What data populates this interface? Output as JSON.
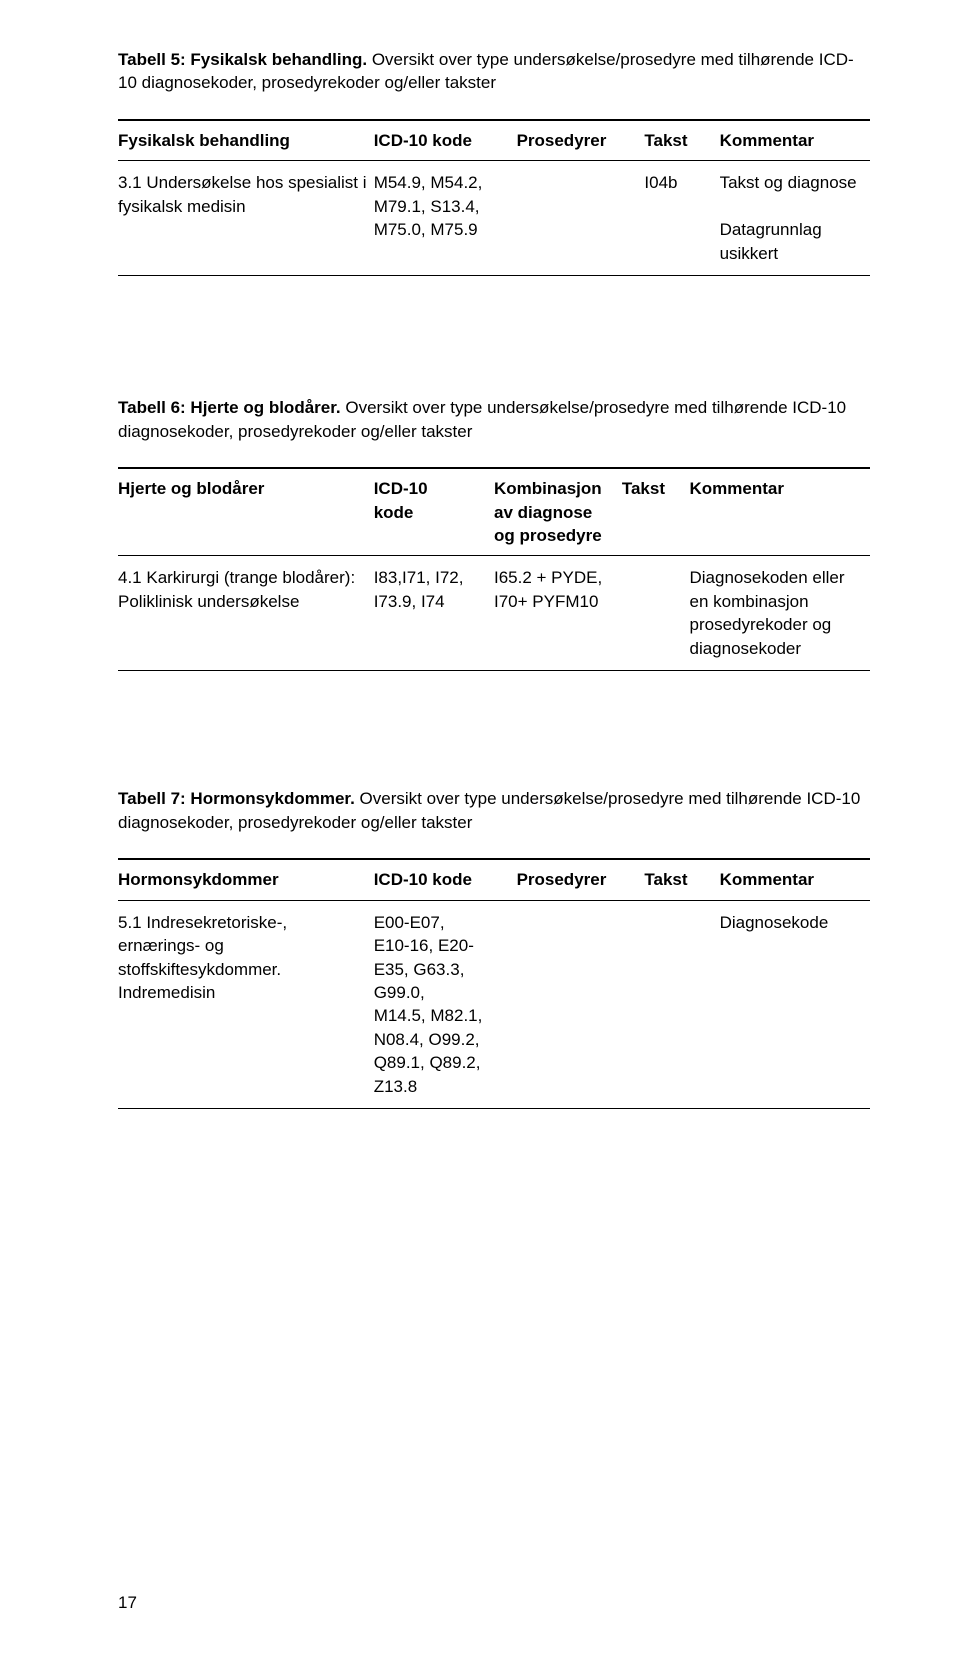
{
  "page_number": "17",
  "tables": [
    {
      "caption_bold": "Tabell 5: Fysikalsk behandling.",
      "caption_rest": " Oversikt over type undersøkelse/prosedyre med tilhørende ICD-10 diagnosekoder, prosedyrekoder og/eller takster",
      "headers": [
        "Fysikalsk behandling",
        "ICD-10 kode",
        "Prosedyrer",
        "Takst",
        "Kommentar"
      ],
      "rows": [
        {
          "c1": "3.1 Undersøkelse hos spesialist i fysikalsk medisin",
          "c2": "M54.9, M54.2,\nM79.1, S13.4,\nM75.0, M75.9",
          "c3": "",
          "c4": "I04b",
          "c5": "Takst og diagnose\n\nDatagrunnlag usikkert"
        }
      ]
    },
    {
      "caption_bold": "Tabell 6: Hjerte og blodårer.",
      "caption_rest": " Oversikt over type undersøkelse/prosedyre med tilhørende ICD-10 diagnosekoder, prosedyrekoder og/eller takster",
      "headers": [
        "Hjerte og blodårer",
        "ICD-10\nkode",
        "Kombinasjon\nav diagnose\nog prosedyre",
        "Takst",
        "Kommentar"
      ],
      "rows": [
        {
          "c1": "4.1 Karkirurgi (trange blodårer):\nPoliklinisk undersøkelse",
          "c2": "I83,I71, I72,\nI73.9, I74",
          "c3": "I65.2 + PYDE,\nI70+ PYFM10",
          "c4": "",
          "c5": "Diagnosekoden eller\nen kombinasjon\nprosedyrekoder og\ndiagnosekoder"
        }
      ]
    },
    {
      "caption_bold": "Tabell 7: Hormonsykdommer.",
      "caption_rest": " Oversikt over type undersøkelse/prosedyre med tilhørende ICD-10 diagnosekoder, prosedyrekoder og/eller takster",
      "headers": [
        "Hormonsykdommer",
        "ICD-10 kode",
        "Prosedyrer",
        "Takst",
        "Kommentar"
      ],
      "rows": [
        {
          "c1": "5.1 Indresekretoriske-,\nernærings- og\nstoffskiftesykdommer.\nIndremedisin",
          "c2": "E00-E07,\nE10-16, E20-\nE35, G63.3,\nG99.0,\nM14.5, M82.1,\nN08.4, O99.2,\nQ89.1, Q89.2,\nZ13.8",
          "c3": "",
          "c4": "",
          "c5": "Diagnosekode"
        }
      ]
    }
  ]
}
